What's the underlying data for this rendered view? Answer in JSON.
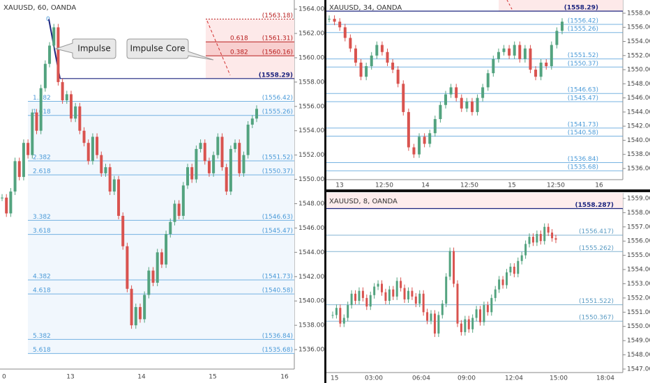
{
  "panels": [
    {
      "title": "XAUUSD, 60, OANDA",
      "ylim": [
        1534.4,
        1564.75
      ],
      "yticks": [
        {
          "value": 1536,
          "label": "1536.00"
        },
        {
          "value": 1538,
          "label": "1538.00"
        },
        {
          "value": 1540,
          "label": "1540.00"
        },
        {
          "value": 1542,
          "label": "1542.00"
        },
        {
          "value": 1544,
          "label": "1544.00"
        },
        {
          "value": 1546,
          "label": "1546.00"
        },
        {
          "value": 1548,
          "label": "1548.00"
        },
        {
          "value": 1550,
          "label": "1550.00"
        },
        {
          "value": 1552,
          "label": "1552.00"
        },
        {
          "value": 1554,
          "label": "1554.00"
        },
        {
          "value": 1556,
          "label": "1556.00"
        },
        {
          "value": 1558,
          "label": "1558.00"
        },
        {
          "value": 1560,
          "label": "1560.00"
        },
        {
          "value": 1562,
          "label": "1562.00"
        },
        {
          "value": 1564,
          "label": "1564.00"
        }
      ],
      "xticks": [
        "0",
        "13",
        "14",
        "15",
        "16"
      ],
      "levels": [
        {
          "ratio": "0",
          "price": 1563.18,
          "price_label": "(1563.18)",
          "color": "#b71c1c"
        },
        {
          "ratio": "0.618",
          "price": 1561.31,
          "price_label": "(1561.31)",
          "color": "#b71c1c"
        },
        {
          "ratio": "0.382",
          "price": 1560.16,
          "price_label": "(1560.16)",
          "color": "#b71c1c"
        },
        {
          "price": 1558.29,
          "price_label": "(1558.29)",
          "color": "#1a237e"
        },
        {
          "ratio": "1.382",
          "price": 1556.42,
          "price_label": "(1556.42)",
          "color": "#4a9ad8"
        },
        {
          "ratio": "1.618",
          "price": 1555.26,
          "price_label": "(1555.26)",
          "color": "#4a9ad8"
        },
        {
          "ratio": "2.382",
          "price": 1551.52,
          "price_label": "(1551.52)",
          "color": "#4a9ad8"
        },
        {
          "ratio": "2.618",
          "price": 1550.37,
          "price_label": "(1550.37)",
          "color": "#4a9ad8"
        },
        {
          "ratio": "3.382",
          "price": 1546.63,
          "price_label": "(1546.63)",
          "color": "#4a9ad8"
        },
        {
          "ratio": "3.618",
          "price": 1545.47,
          "price_label": "(1545.47)",
          "color": "#4a9ad8"
        },
        {
          "ratio": "4.382",
          "price": 1541.73,
          "price_label": "(1541.73)",
          "color": "#4a9ad8"
        },
        {
          "ratio": "4.618",
          "price": 1540.58,
          "price_label": "(1540.58)",
          "color": "#4a9ad8"
        },
        {
          "ratio": "5.382",
          "price": 1536.84,
          "price_label": "(1536.84)",
          "color": "#4a9ad8"
        },
        {
          "ratio": "5.618",
          "price": 1535.68,
          "price_label": "(1535.68)",
          "color": "#4a9ad8"
        }
      ],
      "closes": [
        1548.5,
        1547.2,
        1549.0,
        1551.5,
        1550.2,
        1553.0,
        1552.0,
        1555.5,
        1554.0,
        1557.5,
        1559.5,
        1561.0,
        1562.5,
        1558.0,
        1556.5,
        1557.0,
        1555.0,
        1556.0,
        1554.0,
        1553.0,
        1551.5,
        1553.5,
        1552.0,
        1550.5,
        1551.0,
        1549.0,
        1550.0,
        1547.0,
        1544.5,
        1541.0,
        1538.0,
        1539.5,
        1538.5,
        1540.5,
        1542.5,
        1541.5,
        1544.0,
        1543.0,
        1545.5,
        1546.5,
        1548.0,
        1547.0,
        1549.5,
        1551.0,
        1550.0,
        1552.5,
        1553.0,
        1551.5,
        1550.5,
        1552.0,
        1553.5,
        1551.0,
        1549.0,
        1552.5,
        1553.0,
        1550.5,
        1552.0,
        1554.5,
        1555.0,
        1555.8
      ],
      "annotations": [
        "Impulse",
        "Impulse Core"
      ]
    },
    {
      "title": "XAUUSD, 34, OANDA",
      "ylim": [
        1534.42,
        1559.87
      ],
      "yticks": [
        {
          "value": 1536,
          "label": "1536.00"
        },
        {
          "value": 1538,
          "label": "1538.00"
        },
        {
          "value": 1540,
          "label": "1540.00"
        },
        {
          "value": 1542,
          "label": "1542.00"
        },
        {
          "value": 1544,
          "label": "1544.00"
        },
        {
          "value": 1546,
          "label": "1546.00"
        },
        {
          "value": 1548,
          "label": "1548.00"
        },
        {
          "value": 1550,
          "label": "1550.00"
        },
        {
          "value": 1552,
          "label": "1552.00"
        },
        {
          "value": 1554,
          "label": "1554.00"
        },
        {
          "value": 1556,
          "label": "1556.00"
        },
        {
          "value": 1558,
          "label": "1558.00"
        }
      ],
      "xticks": [
        "13",
        "12:50",
        "14",
        "12:50",
        "15",
        "12:50",
        "16"
      ],
      "levels": [
        {
          "price": 1558.29,
          "price_label": "(1558.29)",
          "color": "#1a237e"
        },
        {
          "price": 1556.42,
          "price_label": "(1556.42)",
          "color": "#4a9ad8"
        },
        {
          "price": 1555.26,
          "price_label": "(1555.26)",
          "color": "#4a9ad8"
        },
        {
          "price": 1551.52,
          "price_label": "(1551.52)",
          "color": "#4a9ad8"
        },
        {
          "price": 1550.37,
          "price_label": "(1550.37)",
          "color": "#4a9ad8"
        },
        {
          "price": 1546.63,
          "price_label": "(1546.63)",
          "color": "#4a9ad8"
        },
        {
          "price": 1545.47,
          "price_label": "(1545.47)",
          "color": "#4a9ad8"
        },
        {
          "price": 1541.73,
          "price_label": "(1541.73)",
          "color": "#4a9ad8"
        },
        {
          "price": 1540.58,
          "price_label": "(1540.58)",
          "color": "#4a9ad8"
        },
        {
          "price": 1536.84,
          "price_label": "(1536.84)",
          "color": "#4a9ad8"
        },
        {
          "price": 1535.68,
          "price_label": "(1535.68)",
          "color": "#4a9ad8"
        }
      ],
      "closes": [
        1557.2,
        1556.8,
        1556.0,
        1554.5,
        1553.0,
        1551.0,
        1549.0,
        1550.5,
        1552.0,
        1553.5,
        1552.5,
        1551.0,
        1550.0,
        1548.0,
        1544.0,
        1539.0,
        1538.0,
        1540.5,
        1539.5,
        1541.0,
        1543.0,
        1545.0,
        1546.5,
        1547.5,
        1546.0,
        1544.5,
        1545.5,
        1544.0,
        1546.0,
        1547.5,
        1549.5,
        1551.5,
        1552.5,
        1553.0,
        1552.0,
        1553.5,
        1551.5,
        1553.0,
        1550.0,
        1549.0,
        1551.0,
        1550.5,
        1553.5,
        1555.5,
        1556.8
      ]
    },
    {
      "title": "XAUUSD, 8, OANDA",
      "ylim": [
        1546.755,
        1559.39
      ],
      "yticks": [
        {
          "value": 1547,
          "label": "1547.000"
        },
        {
          "value": 1548,
          "label": "1548.000"
        },
        {
          "value": 1549,
          "label": "1549.000"
        },
        {
          "value": 1550,
          "label": "1550.000"
        },
        {
          "value": 1551,
          "label": "1551.000"
        },
        {
          "value": 1552,
          "label": "1552.000"
        },
        {
          "value": 1553,
          "label": "1553.000"
        },
        {
          "value": 1554,
          "label": "1554.000"
        },
        {
          "value": 1555,
          "label": "1555.000"
        },
        {
          "value": 1556,
          "label": "1556.000"
        },
        {
          "value": 1557,
          "label": "1557.000"
        },
        {
          "value": 1558,
          "label": "1558.000"
        },
        {
          "value": 1559,
          "label": "1559.000"
        }
      ],
      "xticks": [
        "15",
        "03:00",
        "06:04",
        "09:00",
        "12:04",
        "15:00",
        "18:04"
      ],
      "levels": [
        {
          "price": 1558.287,
          "price_label": "(1558.287)",
          "color": "#1a237e"
        },
        {
          "price": 1556.417,
          "price_label": "(1556.417)",
          "color": "#5b9cc4"
        },
        {
          "price": 1555.262,
          "price_label": "(1555.262)",
          "color": "#5b9cc4"
        },
        {
          "price": 1551.522,
          "price_label": "(1551.522)",
          "color": "#5b9cc4"
        },
        {
          "price": 1550.367,
          "price_label": "(1550.367)",
          "color": "#5b9cc4"
        }
      ],
      "closes": [
        1550.8,
        1551.3,
        1550.2,
        1550.6,
        1551.5,
        1552.3,
        1551.8,
        1552.5,
        1552.0,
        1551.4,
        1552.2,
        1552.8,
        1553.0,
        1552.4,
        1551.8,
        1552.6,
        1552.1,
        1553.2,
        1552.7,
        1551.9,
        1552.5,
        1552.1,
        1551.6,
        1552.3,
        1551.0,
        1550.4,
        1550.9,
        1549.5,
        1550.8,
        1551.6,
        1553.5,
        1555.3,
        1553.0,
        1550.2,
        1549.6,
        1550.5,
        1549.8,
        1550.6,
        1551.2,
        1550.3,
        1551.5,
        1551.0,
        1552.0,
        1552.6,
        1553.3,
        1552.9,
        1553.8,
        1554.2,
        1553.7,
        1554.6,
        1555.0,
        1555.8,
        1556.3,
        1555.9,
        1556.5,
        1556.0,
        1557.0,
        1556.6,
        1556.2,
        1556.1
      ]
    }
  ]
}
